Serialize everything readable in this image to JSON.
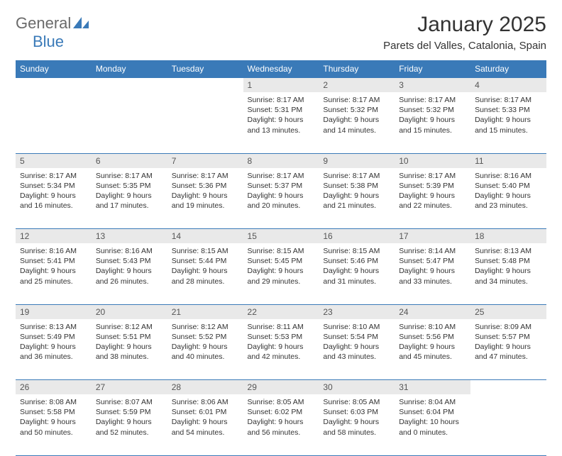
{
  "logo": {
    "text1": "General",
    "text2": "Blue"
  },
  "title": "January 2025",
  "location": "Parets del Valles, Catalonia, Spain",
  "colors": {
    "header_bg": "#3a7ab8",
    "header_text": "#ffffff",
    "daynum_bg": "#e9e9e9",
    "daynum_text": "#555555",
    "cell_text": "#333333",
    "border": "#3a7ab8",
    "logo_gray": "#6a6a6a",
    "logo_blue": "#3a7ab8",
    "page_bg": "#ffffff"
  },
  "weekdays": [
    "Sunday",
    "Monday",
    "Tuesday",
    "Wednesday",
    "Thursday",
    "Friday",
    "Saturday"
  ],
  "weeks": [
    [
      null,
      null,
      null,
      {
        "n": "1",
        "sr": "8:17 AM",
        "ss": "5:31 PM",
        "dh": "9",
        "dm": "13"
      },
      {
        "n": "2",
        "sr": "8:17 AM",
        "ss": "5:32 PM",
        "dh": "9",
        "dm": "14"
      },
      {
        "n": "3",
        "sr": "8:17 AM",
        "ss": "5:32 PM",
        "dh": "9",
        "dm": "15"
      },
      {
        "n": "4",
        "sr": "8:17 AM",
        "ss": "5:33 PM",
        "dh": "9",
        "dm": "15"
      }
    ],
    [
      {
        "n": "5",
        "sr": "8:17 AM",
        "ss": "5:34 PM",
        "dh": "9",
        "dm": "16"
      },
      {
        "n": "6",
        "sr": "8:17 AM",
        "ss": "5:35 PM",
        "dh": "9",
        "dm": "17"
      },
      {
        "n": "7",
        "sr": "8:17 AM",
        "ss": "5:36 PM",
        "dh": "9",
        "dm": "19"
      },
      {
        "n": "8",
        "sr": "8:17 AM",
        "ss": "5:37 PM",
        "dh": "9",
        "dm": "20"
      },
      {
        "n": "9",
        "sr": "8:17 AM",
        "ss": "5:38 PM",
        "dh": "9",
        "dm": "21"
      },
      {
        "n": "10",
        "sr": "8:17 AM",
        "ss": "5:39 PM",
        "dh": "9",
        "dm": "22"
      },
      {
        "n": "11",
        "sr": "8:16 AM",
        "ss": "5:40 PM",
        "dh": "9",
        "dm": "23"
      }
    ],
    [
      {
        "n": "12",
        "sr": "8:16 AM",
        "ss": "5:41 PM",
        "dh": "9",
        "dm": "25"
      },
      {
        "n": "13",
        "sr": "8:16 AM",
        "ss": "5:43 PM",
        "dh": "9",
        "dm": "26"
      },
      {
        "n": "14",
        "sr": "8:15 AM",
        "ss": "5:44 PM",
        "dh": "9",
        "dm": "28"
      },
      {
        "n": "15",
        "sr": "8:15 AM",
        "ss": "5:45 PM",
        "dh": "9",
        "dm": "29"
      },
      {
        "n": "16",
        "sr": "8:15 AM",
        "ss": "5:46 PM",
        "dh": "9",
        "dm": "31"
      },
      {
        "n": "17",
        "sr": "8:14 AM",
        "ss": "5:47 PM",
        "dh": "9",
        "dm": "33"
      },
      {
        "n": "18",
        "sr": "8:13 AM",
        "ss": "5:48 PM",
        "dh": "9",
        "dm": "34"
      }
    ],
    [
      {
        "n": "19",
        "sr": "8:13 AM",
        "ss": "5:49 PM",
        "dh": "9",
        "dm": "36"
      },
      {
        "n": "20",
        "sr": "8:12 AM",
        "ss": "5:51 PM",
        "dh": "9",
        "dm": "38"
      },
      {
        "n": "21",
        "sr": "8:12 AM",
        "ss": "5:52 PM",
        "dh": "9",
        "dm": "40"
      },
      {
        "n": "22",
        "sr": "8:11 AM",
        "ss": "5:53 PM",
        "dh": "9",
        "dm": "42"
      },
      {
        "n": "23",
        "sr": "8:10 AM",
        "ss": "5:54 PM",
        "dh": "9",
        "dm": "43"
      },
      {
        "n": "24",
        "sr": "8:10 AM",
        "ss": "5:56 PM",
        "dh": "9",
        "dm": "45"
      },
      {
        "n": "25",
        "sr": "8:09 AM",
        "ss": "5:57 PM",
        "dh": "9",
        "dm": "47"
      }
    ],
    [
      {
        "n": "26",
        "sr": "8:08 AM",
        "ss": "5:58 PM",
        "dh": "9",
        "dm": "50"
      },
      {
        "n": "27",
        "sr": "8:07 AM",
        "ss": "5:59 PM",
        "dh": "9",
        "dm": "52"
      },
      {
        "n": "28",
        "sr": "8:06 AM",
        "ss": "6:01 PM",
        "dh": "9",
        "dm": "54"
      },
      {
        "n": "29",
        "sr": "8:05 AM",
        "ss": "6:02 PM",
        "dh": "9",
        "dm": "56"
      },
      {
        "n": "30",
        "sr": "8:05 AM",
        "ss": "6:03 PM",
        "dh": "9",
        "dm": "58"
      },
      {
        "n": "31",
        "sr": "8:04 AM",
        "ss": "6:04 PM",
        "dh": "10",
        "dm": "0"
      },
      null
    ]
  ],
  "labels": {
    "sunrise": "Sunrise:",
    "sunset": "Sunset:",
    "daylight": "Daylight:",
    "hours": "hours",
    "and": "and",
    "minutes": "minutes."
  }
}
